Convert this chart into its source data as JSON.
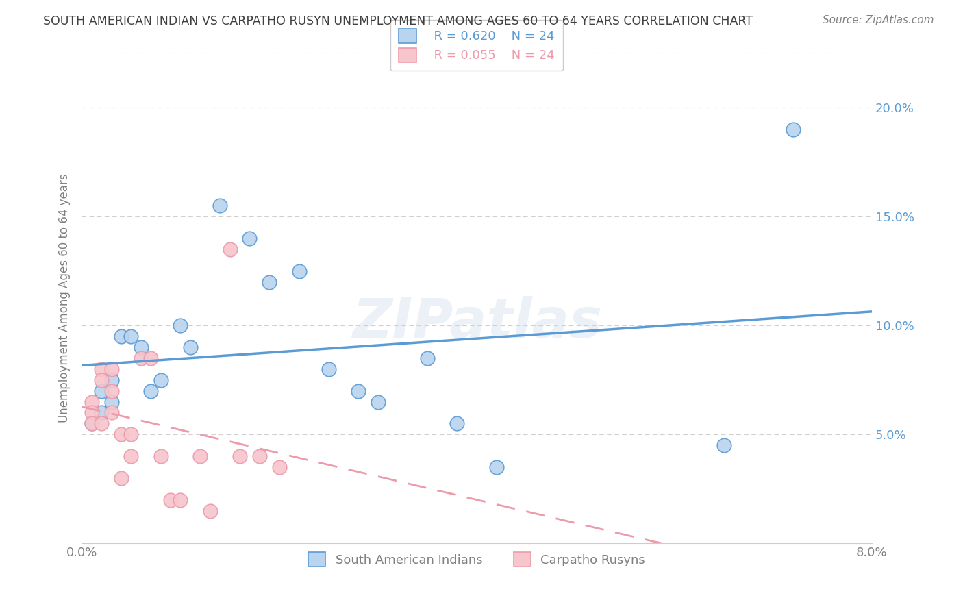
{
  "title": "SOUTH AMERICAN INDIAN VS CARPATHO RUSYN UNEMPLOYMENT AMONG AGES 60 TO 64 YEARS CORRELATION CHART",
  "source": "Source: ZipAtlas.com",
  "ylabel": "Unemployment Among Ages 60 to 64 years",
  "xlim": [
    0.0,
    0.08
  ],
  "ylim": [
    0.0,
    0.225
  ],
  "yticks": [
    0.05,
    0.1,
    0.15,
    0.2
  ],
  "ytick_labels": [
    "5.0%",
    "10.0%",
    "15.0%",
    "20.0%"
  ],
  "xticks": [
    0.0,
    0.02,
    0.04,
    0.06,
    0.08
  ],
  "xtick_labels": [
    "0.0%",
    "",
    "",
    "",
    "8.0%"
  ],
  "blue_R": "R = 0.620",
  "blue_N": "N = 24",
  "pink_R": "R = 0.055",
  "pink_N": "N = 24",
  "legend_label_blue": "South American Indians",
  "legend_label_pink": "Carpatho Rusyns",
  "blue_x": [
    0.001,
    0.002,
    0.002,
    0.003,
    0.003,
    0.004,
    0.005,
    0.006,
    0.007,
    0.008,
    0.01,
    0.011,
    0.014,
    0.017,
    0.019,
    0.022,
    0.025,
    0.028,
    0.03,
    0.035,
    0.038,
    0.042,
    0.065,
    0.072
  ],
  "blue_y": [
    0.055,
    0.07,
    0.06,
    0.075,
    0.065,
    0.095,
    0.095,
    0.09,
    0.07,
    0.075,
    0.1,
    0.09,
    0.155,
    0.14,
    0.12,
    0.125,
    0.08,
    0.07,
    0.065,
    0.085,
    0.055,
    0.035,
    0.045,
    0.19
  ],
  "pink_x": [
    0.001,
    0.001,
    0.001,
    0.002,
    0.002,
    0.002,
    0.003,
    0.003,
    0.003,
    0.004,
    0.004,
    0.005,
    0.005,
    0.006,
    0.007,
    0.008,
    0.009,
    0.01,
    0.012,
    0.013,
    0.015,
    0.016,
    0.018,
    0.02
  ],
  "pink_y": [
    0.065,
    0.06,
    0.055,
    0.08,
    0.075,
    0.055,
    0.08,
    0.07,
    0.06,
    0.05,
    0.03,
    0.05,
    0.04,
    0.085,
    0.085,
    0.04,
    0.02,
    0.02,
    0.04,
    0.015,
    0.135,
    0.04,
    0.04,
    0.035
  ],
  "blue_line_color": "#5b9bd5",
  "pink_line_color": "#ed9aaa",
  "scatter_blue_facecolor": "#b8d4ee",
  "scatter_blue_edgecolor": "#5b9bd5",
  "scatter_pink_facecolor": "#f7c5cc",
  "scatter_pink_edgecolor": "#ed9aaa",
  "background_color": "#ffffff",
  "grid_color": "#d0d0d0",
  "title_color": "#404040",
  "axis_label_color": "#808080",
  "tick_label_color": "#5b9bd5",
  "watermark": "ZIPatlas"
}
